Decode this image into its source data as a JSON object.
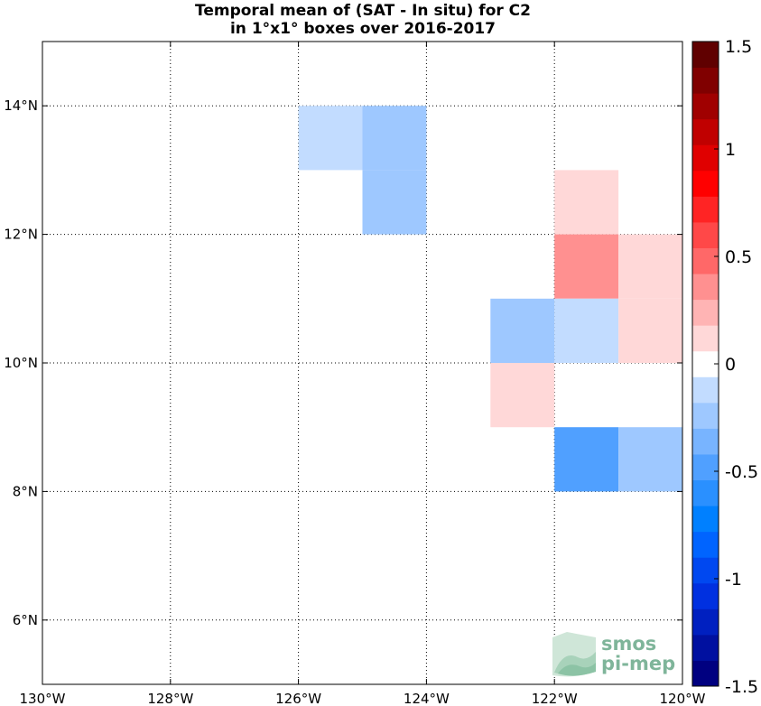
{
  "chart_data": {
    "type": "heatmap",
    "title": [
      "Temporal mean of (SAT - In situ) for C2",
      "in 1°x1° boxes over 2016-2017"
    ],
    "xlim": [
      -130,
      -120
    ],
    "ylim": [
      5,
      15
    ],
    "x_ticks": [
      -130,
      -128,
      -126,
      -124,
      -122,
      -120
    ],
    "x_tick_labels": [
      "130°W",
      "128°W",
      "126°W",
      "124°W",
      "122°W",
      "120°W"
    ],
    "y_ticks": [
      6,
      8,
      10,
      12,
      14
    ],
    "y_tick_labels": [
      "6°N",
      "8°N",
      "10°N",
      "12°N",
      "14°N"
    ],
    "grid": true,
    "colorbar": {
      "range": [
        -1.5,
        1.5
      ],
      "ticks": [
        1.5,
        1,
        0.5,
        0,
        -0.5,
        -1,
        -1.5
      ],
      "tick_labels": [
        "1.5",
        "1",
        "0.5",
        "0",
        "-0.5",
        "-1",
        "-1.5"
      ],
      "levels": 25,
      "colors": [
        "#000080",
        "#0010a0",
        "#0020c0",
        "#0030e0",
        "#0048f0",
        "#0064ff",
        "#0080ff",
        "#2a90ff",
        "#50a0ff",
        "#78b4ff",
        "#9ec8ff",
        "#c2dcff",
        "#ffffff",
        "#ffd8d8",
        "#ffb4b4",
        "#ff9090",
        "#ff6868",
        "#ff4848",
        "#ff2424",
        "#ff0000",
        "#e00000",
        "#c00000",
        "#a00000",
        "#800000",
        "#600000"
      ]
    },
    "cells": [
      {
        "lon": -126,
        "lat": 13,
        "value": -0.1
      },
      {
        "lon": -125,
        "lat": 13,
        "value": -0.25
      },
      {
        "lon": -125,
        "lat": 12,
        "value": -0.25
      },
      {
        "lon": -122,
        "lat": 12,
        "value": 0.15
      },
      {
        "lon": -122,
        "lat": 11,
        "value": 0.3
      },
      {
        "lon": -121,
        "lat": 11,
        "value": 0.15
      },
      {
        "lon": -123,
        "lat": 10,
        "value": -0.25
      },
      {
        "lon": -122,
        "lat": 10,
        "value": -0.1
      },
      {
        "lon": -121,
        "lat": 10,
        "value": 0.15
      },
      {
        "lon": -123,
        "lat": 9,
        "value": 0.15
      },
      {
        "lon": -122,
        "lat": 8,
        "value": -0.45
      },
      {
        "lon": -121,
        "lat": 8,
        "value": -0.25
      }
    ]
  },
  "logo": {
    "line1": "smos",
    "line2": "pi-mep"
  }
}
